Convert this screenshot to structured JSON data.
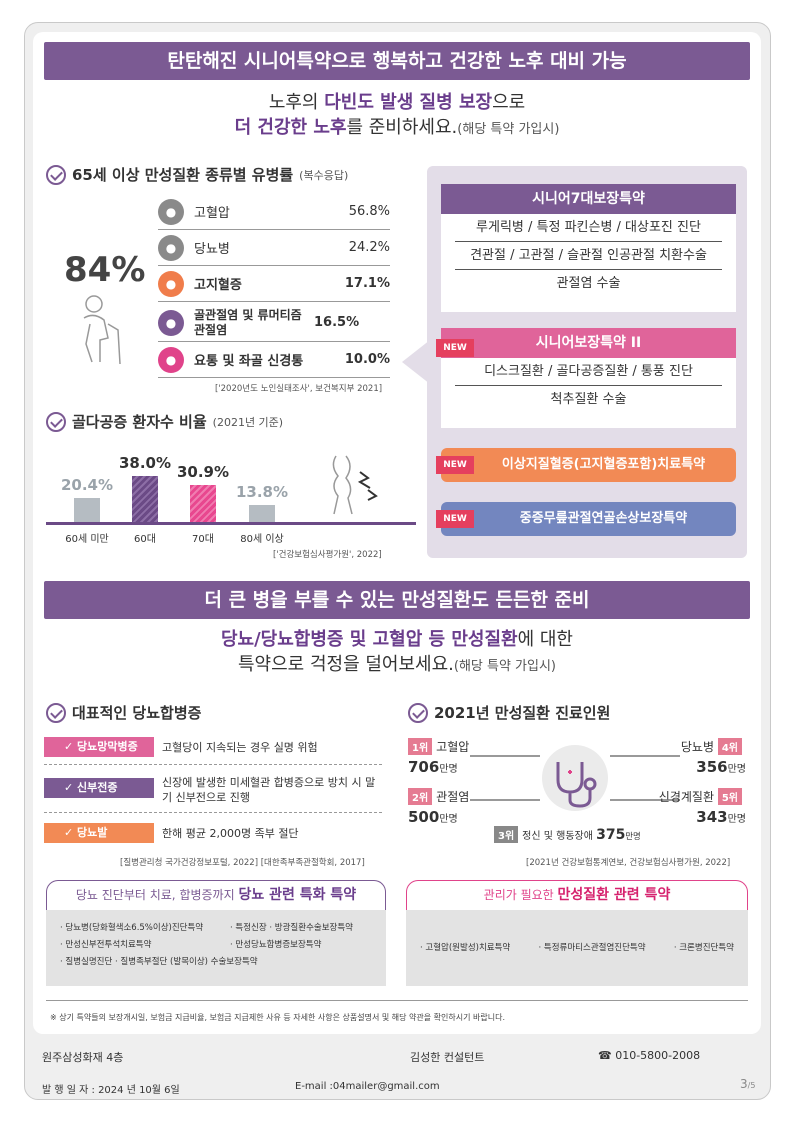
{
  "banner1": "탄탄해진 시니어특약으로 행복하고 건강한 노후 대비 가능",
  "lead1": {
    "pre1": "노후의 ",
    "em1": "다빈도 발생 질병 보장",
    "post1": "으로",
    "em2": "더 건강한 노후",
    "post2": "를 준비하세요.",
    "note": "(해당 특약 가입시)"
  },
  "prevalence": {
    "title": "65세 이상 만성질환 종류별 유병률",
    "note": "(복수응답)",
    "big": "84%",
    "rows": [
      {
        "name": "고혈압",
        "pct": "56.8%",
        "icon": "heart-monitor-icon",
        "color": "#8a8a8a"
      },
      {
        "name": "당뇨병",
        "pct": "24.2%",
        "icon": "drop-icon",
        "color": "#8a8a8a"
      },
      {
        "name": "고지혈증",
        "pct": "17.1%",
        "icon": "vessel-icon",
        "color": "#f07d4b"
      },
      {
        "name": "골관절염 및 류머티즘 관절염",
        "pct": "16.5%",
        "icon": "knee-icon",
        "color": "#7b5a93"
      },
      {
        "name": "요통 및 좌골 신경통",
        "pct": "10.0%",
        "icon": "spine-icon",
        "color": "#e0438a"
      }
    ],
    "source": "['2020년도 노인실태조사', 보건복지부 2021]"
  },
  "osteo": {
    "title": "골다공증 환자수 비율",
    "note": "(2021년 기준)",
    "source": "['건강보험심사평가원', 2022]"
  },
  "chart_data": {
    "type": "bar",
    "categories": [
      "60세 미만",
      "60대",
      "70대",
      "80세 이상"
    ],
    "values": [
      20.4,
      38.0,
      30.9,
      13.8
    ],
    "labels": [
      "20.4%",
      "38.0%",
      "30.9%",
      "13.8%"
    ],
    "colors": [
      "#b5bcc2",
      "#6b4a86",
      "#e8478f",
      "#b5bcc2"
    ]
  },
  "riders": {
    "box1": {
      "title": "시니어7대보장특약",
      "lines": [
        "루게릭병 / 특정 파킨슨병 / 대상포진 진단",
        "견관절 / 고관절 / 슬관절 인공관절 치환수술",
        "관절염 수술"
      ],
      "color": "#7b5a93"
    },
    "box2": {
      "tag": "NEW",
      "title": "시니어보장특약 II",
      "lines": [
        "디스크질환 / 골다공증질환 / 통풍 진단",
        "척추질환 수술"
      ],
      "color": "#e0649a"
    },
    "pill1": {
      "tag": "NEW",
      "text": "이상지질혈증(고지혈증포함)치료특약",
      "color": "#f28a55"
    },
    "pill2": {
      "tag": "NEW",
      "text": "중증무릎관절연골손상보장특약",
      "color": "#7386bf"
    }
  },
  "banner2": "더 큰 병을 부를 수 있는 만성질환도 든든한 준비",
  "lead2": {
    "em": "당뇨/당뇨합병증 및 고혈압 등 만성질환",
    "post": "에 대한",
    "line2": "특약으로 걱정을 덜어보세요.",
    "note": "(해당 특약 가입시)"
  },
  "complications": {
    "title": "대표적인 당뇨합병증",
    "items": [
      {
        "name": "당뇨망막병증",
        "desc": "고혈당이 지속되는 경우 실명 위험",
        "color": "#e0649a"
      },
      {
        "name": "신부전증",
        "desc": "신장에 발생한 미세혈관 합병증으로 방치 시 말기 신부전으로 진행",
        "color": "#7b5a93"
      },
      {
        "name": "당뇨발",
        "desc": "한해 평균 2,000명 족부 절단",
        "color": "#f28a55"
      }
    ],
    "source": "[질병관리청 국가건강정보포털, 2022] [대한족부족관절학회, 2017]"
  },
  "patients": {
    "title": "2021년 만성질환 진료인원",
    "left": [
      {
        "rank": "1위",
        "name": "고혈압",
        "num": "706",
        "unit": "만명"
      },
      {
        "rank": "2위",
        "name": "관절염",
        "num": "500",
        "unit": "만명"
      }
    ],
    "right": [
      {
        "rank": "4위",
        "name": "당뇨병",
        "num": "356",
        "unit": "만명"
      },
      {
        "rank": "5위",
        "name": "신경계질환",
        "num": "343",
        "unit": "만명"
      }
    ],
    "center": {
      "rank": "3위",
      "name": "정신 및 행동장애",
      "num": "375",
      "unit": "만명"
    },
    "source": "[2021년 건강보험통계연보, 건강보험심사평가원, 2022]"
  },
  "info1": {
    "pre": "당뇨 진단부터 치료, 합병증까지 ",
    "em": "당뇨 관련 특화 특약",
    "items": [
      "· 당뇨병(당화혈색소6.5%이상)진단특약",
      "· 특정신장 · 방광질환수술보장특약",
      "· 만성신부전투석치료특약",
      "· 만성당뇨합병증보장특약",
      "· 질병실명진단 · 질병족부절단 (발목이상) 수술보장특약"
    ]
  },
  "info2": {
    "pre": "관리가 필요한 ",
    "em": "만성질환 관련 특약",
    "items": [
      "· 고혈압(원발성)치료특약",
      "· 특정류마티스관절염진단특약",
      "· 크론병진단특약"
    ]
  },
  "disclaimer": "※ 상기 특약들의 보장개시일, 보험금 지급비율, 보험금 지급제한 사유 등 자세한 사항은 상품설명서 및 해당 약관을 확인하시기 바랍니다.",
  "footer": {
    "company": "원주삼성화재 4층",
    "consultant": "김성한 컨설턴트",
    "phone": "☎ 010-5800-2008",
    "date": "발 행 일 자 : 2024 년 10월 6일",
    "email": "E-mail :04mailer@gmail.com",
    "page": "3",
    "pages": "/5"
  }
}
